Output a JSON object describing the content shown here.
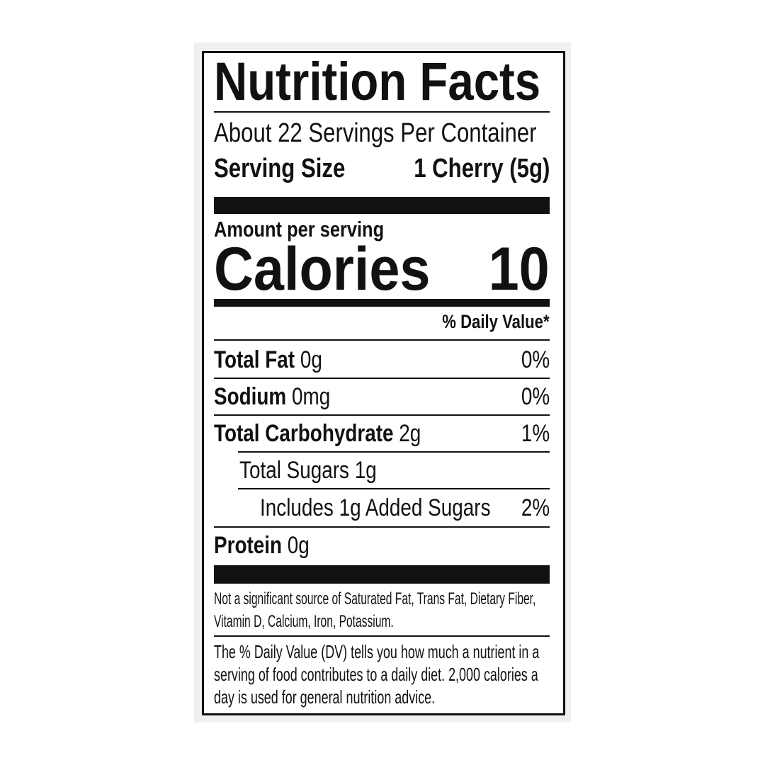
{
  "label": {
    "title": "Nutrition Facts",
    "servings_per_container": "About 22 Servings Per Container",
    "serving_size_label": "Serving Size",
    "serving_size_value": "1 Cherry (5g)",
    "amount_per_serving": "Amount per serving",
    "calories_label": "Calories",
    "calories_value": "10",
    "daily_value_header": "% Daily Value*",
    "nutrients": [
      {
        "name": "Total Fat",
        "amount": "0g",
        "dv": "0%"
      },
      {
        "name": "Sodium",
        "amount": "0mg",
        "dv": "0%"
      },
      {
        "name": "Total Carbohydrate",
        "amount": "2g",
        "dv": "1%"
      },
      {
        "name": "Total Sugars 1g",
        "amount": "",
        "dv": ""
      },
      {
        "name": "Includes 1g Added Sugars",
        "amount": "",
        "dv": "2%"
      },
      {
        "name": "Protein",
        "amount": "0g",
        "dv": ""
      }
    ],
    "not_significant_note": "Not a significant source of Saturated Fat, Trans Fat, Dietary Fiber, Vitamin D, Calcium, Iron, Potassium.",
    "dv_footnote": "The % Daily Value (DV) tells you how much a nutrient in a serving of food contributes to a daily diet. 2,000 calories a day is used for general nutrition advice."
  }
}
